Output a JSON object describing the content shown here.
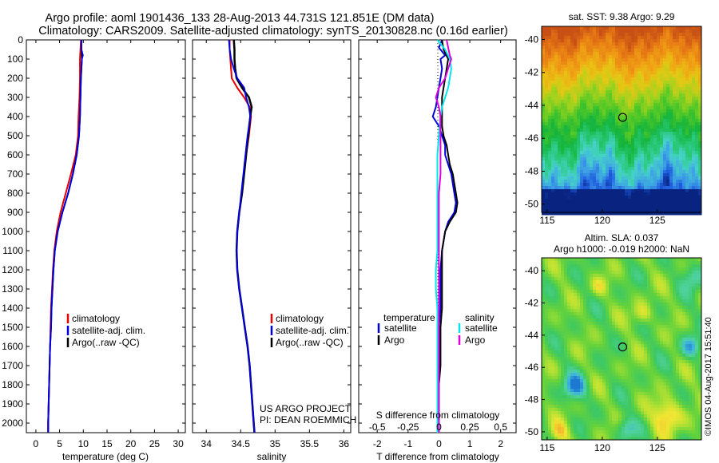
{
  "figure": {
    "title_line1": "Argo profile: aoml 1901436_133 28-Aug-2013 44.731S 121.851E (DM data)",
    "title_line2": "Climatology: CARS2009. Satellite-adjusted climatology: synTS_20130828.nc (0.16d earlier)",
    "credit": "US ARGO PROJECT",
    "pi": "PI: DEAN ROEMMICH",
    "watermark": "©IMOS 04-Aug-2017 15:51:40"
  },
  "colors": {
    "climatology": "#e60000",
    "satellite": "#0000dd",
    "argo": "#000000",
    "salinity_satellite": "#00e5ee",
    "salinity_argo": "#dd00dd"
  },
  "chart_data": [
    {
      "id": "temperature",
      "type": "line",
      "xlabel": "temperature (deg C)",
      "ylabel": "",
      "xlim": [
        -2,
        31.5
      ],
      "ylim": [
        2050,
        0
      ],
      "xticks": [
        0,
        5,
        10,
        15,
        20,
        25,
        30
      ],
      "yticks": [
        0,
        100,
        200,
        300,
        400,
        500,
        600,
        700,
        800,
        900,
        1000,
        1100,
        1200,
        1300,
        1400,
        1500,
        1600,
        1700,
        1800,
        1900,
        2000
      ],
      "legend": [
        "climatology",
        "satellite-adj. clim.",
        "Argo(..raw -QC)"
      ],
      "series": [
        {
          "name": "climatology",
          "color_key": "climatology",
          "width": 2,
          "depth": [
            0,
            50,
            100,
            150,
            200,
            300,
            400,
            500,
            600,
            700,
            800,
            900,
            1000,
            1100,
            1200,
            1300,
            1400,
            1500,
            1600,
            1700,
            1800,
            1900,
            2000,
            2050
          ],
          "values": [
            9.5,
            9.4,
            9.3,
            9.3,
            9.3,
            9.2,
            9.0,
            8.9,
            8.4,
            7.4,
            6.3,
            5.2,
            4.4,
            3.9,
            3.6,
            3.4,
            3.2,
            3.1,
            3.0,
            2.9,
            2.8,
            2.7,
            2.6,
            2.6
          ]
        },
        {
          "name": "Argo",
          "color_key": "argo",
          "width": 2,
          "depth": [
            0,
            50,
            100,
            150,
            200,
            300,
            400,
            500,
            600,
            700,
            800,
            900,
            1000,
            1100,
            1200,
            1300,
            1400,
            1500,
            1600,
            1700,
            1800,
            1900,
            2000,
            2050
          ],
          "values": [
            9.6,
            9.6,
            9.7,
            9.6,
            9.5,
            9.4,
            9.3,
            9.1,
            8.6,
            7.8,
            6.8,
            5.6,
            4.6,
            4.0,
            3.7,
            3.5,
            3.3,
            3.2,
            3.0,
            2.9,
            2.8,
            2.7,
            2.6,
            2.6
          ]
        },
        {
          "name": "satellite",
          "color_key": "satellite",
          "width": 2,
          "depth": [
            0,
            50,
            80,
            100,
            150,
            200,
            300,
            400,
            500,
            600,
            700,
            800,
            900,
            1000,
            1100,
            1200,
            1300,
            1400,
            1500,
            1600,
            1700,
            1800,
            1900,
            2000,
            2050
          ],
          "values": [
            9.6,
            9.6,
            9.9,
            9.7,
            9.6,
            9.5,
            9.4,
            9.3,
            9.1,
            8.6,
            7.8,
            6.8,
            5.6,
            4.6,
            4.0,
            3.7,
            3.5,
            3.3,
            3.2,
            3.0,
            2.9,
            2.8,
            2.7,
            2.6,
            2.6
          ]
        }
      ]
    },
    {
      "id": "salinity",
      "type": "line",
      "xlabel": "salinity",
      "ylabel": "",
      "xlim": [
        33.8,
        36.1
      ],
      "ylim": [
        2050,
        0
      ],
      "xticks": [
        34,
        34.5,
        35,
        35.5,
        36
      ],
      "legend": [
        "climatology",
        "satellite-adj. clim.",
        "Argo(..raw -QC)"
      ],
      "series": [
        {
          "name": "climatology",
          "color_key": "climatology",
          "width": 2,
          "depth": [
            0,
            50,
            100,
            150,
            200,
            250,
            300,
            350,
            400,
            500,
            600,
            700,
            800,
            900,
            1000,
            1100,
            1200,
            1300,
            1400,
            1500,
            1600,
            1700,
            1800,
            1900,
            2000,
            2050
          ],
          "values": [
            34.34,
            34.34,
            34.35,
            34.36,
            34.37,
            34.45,
            34.55,
            34.63,
            34.65,
            34.62,
            34.58,
            34.55,
            34.52,
            34.48,
            34.45,
            34.44,
            34.45,
            34.48,
            34.52,
            34.56,
            34.6,
            34.63,
            34.65,
            34.67,
            34.69,
            34.7
          ]
        },
        {
          "name": "Argo",
          "color_key": "argo",
          "width": 2.5,
          "depth": [
            0,
            50,
            100,
            150,
            200,
            250,
            300,
            350,
            400,
            500,
            600,
            700,
            800,
            900,
            1000,
            1100,
            1200,
            1300,
            1400,
            1500,
            1600,
            1700,
            1800,
            1900,
            2000,
            2050
          ],
          "values": [
            34.4,
            34.41,
            34.41,
            34.42,
            34.44,
            34.52,
            34.62,
            34.66,
            34.64,
            34.61,
            34.58,
            34.55,
            34.52,
            34.48,
            34.45,
            34.44,
            34.45,
            34.48,
            34.52,
            34.56,
            34.6,
            34.63,
            34.65,
            34.67,
            34.69,
            34.7
          ]
        },
        {
          "name": "satellite",
          "color_key": "satellite",
          "width": 2,
          "depth": [
            0,
            50,
            100,
            150,
            200,
            250,
            300,
            350,
            400,
            500,
            600,
            700,
            800,
            900,
            1000,
            1100,
            1200,
            1300,
            1400,
            1500,
            1600,
            1700,
            1800,
            1900,
            2000,
            2050
          ],
          "values": [
            34.33,
            34.34,
            34.36,
            34.4,
            34.45,
            34.55,
            34.58,
            34.62,
            34.64,
            34.6,
            34.57,
            34.54,
            34.51,
            34.48,
            34.45,
            34.44,
            34.45,
            34.48,
            34.52,
            34.56,
            34.6,
            34.63,
            34.65,
            34.67,
            34.69,
            34.7
          ]
        }
      ]
    },
    {
      "id": "differences",
      "type": "line",
      "xlabel": "T difference from climatology",
      "xlabel_top": "S difference from climatology",
      "ylabel": "",
      "xlim": [
        -2.6,
        2.5
      ],
      "ylim": [
        2050,
        0
      ],
      "xticks": [
        -2,
        -1,
        0,
        1,
        2
      ],
      "xticks_secondary_labels": [
        "-0.5",
        "-0.25",
        "0",
        "0.25",
        "0.5"
      ],
      "xticks_secondary_positions": [
        -2,
        -1,
        0,
        1,
        2
      ],
      "legend_temperature_header": "temperature",
      "legend_salinity_header": "salinity",
      "legend_temperature": [
        "satellite",
        "Argo"
      ],
      "legend_salinity": [
        "satellite",
        "Argo"
      ],
      "series": [
        {
          "name": "T satellite",
          "color_key": "satellite",
          "width": 2,
          "depth": [
            0,
            40,
            80,
            100,
            150,
            200,
            250,
            300,
            350,
            400,
            450,
            500,
            550,
            600,
            650,
            700,
            750,
            800,
            850,
            900,
            950,
            1000,
            1100,
            1200,
            1300,
            1400,
            1500,
            1600,
            1700,
            1800,
            1900,
            2000,
            2050
          ],
          "values": [
            0.1,
            0.0,
            0.2,
            0.05,
            0.1,
            0.05,
            0.0,
            -0.05,
            -0.1,
            -0.2,
            0.0,
            0.1,
            0.2,
            0.2,
            0.3,
            0.4,
            0.45,
            0.5,
            0.55,
            0.5,
            0.3,
            0.2,
            0.1,
            0.05,
            0.05,
            0.05,
            0.0,
            0.0,
            0.0,
            0.0,
            0.0,
            0.0,
            0.0
          ]
        },
        {
          "name": "T Argo",
          "color_key": "argo",
          "width": 2,
          "depth": [
            0,
            50,
            100,
            150,
            200,
            250,
            300,
            350,
            400,
            450,
            500,
            550,
            600,
            650,
            700,
            750,
            800,
            850,
            900,
            950,
            1000,
            1100,
            1200,
            1300,
            1400,
            1500,
            1600,
            1700,
            1800,
            1900,
            2000,
            2050
          ],
          "values": [
            0.1,
            0.15,
            0.3,
            0.25,
            0.2,
            0.15,
            0.1,
            0.1,
            0.1,
            0.1,
            0.15,
            0.25,
            0.3,
            0.35,
            0.45,
            0.5,
            0.55,
            0.6,
            0.55,
            0.35,
            0.2,
            0.1,
            0.1,
            0.1,
            0.1,
            0.05,
            0.05,
            0.05,
            0.0,
            0.0,
            0.0,
            0.0
          ]
        },
        {
          "name": "S satellite",
          "color_key": "salinity_satellite",
          "width": 2,
          "depth": [
            0,
            50,
            100,
            150,
            200,
            250,
            300,
            350,
            400,
            500,
            600,
            700,
            800,
            900,
            1000,
            1100,
            1200,
            1300,
            1400,
            1500,
            1600,
            1700,
            1800,
            1900,
            2000,
            2050
          ],
          "values": [
            -0.05,
            0.2,
            0.35,
            0.4,
            0.35,
            0.3,
            0.2,
            0.1,
            0.05,
            0.0,
            -0.05,
            -0.05,
            -0.05,
            -0.05,
            -0.05,
            -0.05,
            -0.1,
            -0.1,
            -0.05,
            -0.05,
            -0.05,
            -0.05,
            -0.05,
            -0.05,
            -0.05,
            -0.05
          ]
        },
        {
          "name": "S Argo",
          "color_key": "salinity_argo",
          "width": 2,
          "depth": [
            0,
            40,
            80,
            100,
            150,
            200,
            250,
            300,
            350,
            400,
            500,
            600,
            700,
            800,
            900,
            1000,
            1100,
            1200,
            1300,
            1400,
            1500,
            1600,
            1700,
            1800,
            1900,
            2000,
            2050
          ],
          "values": [
            0.25,
            0.3,
            0.35,
            0.4,
            0.3,
            0.2,
            0.0,
            -0.1,
            0.0,
            0.05,
            0.05,
            0.05,
            0.05,
            0.0,
            0.0,
            0.0,
            0.0,
            0.0,
            0.0,
            0.0,
            0.0,
            0.0,
            0.0,
            0.0,
            0.0,
            0.0,
            0.0
          ]
        }
      ]
    },
    {
      "id": "sst_map",
      "type": "heatmap",
      "title": "sat. SST: 9.38 Argo: 9.29",
      "xlim": [
        114.5,
        129
      ],
      "ylim": [
        -50.5,
        -39.2
      ],
      "xticks": [
        115,
        120,
        125
      ],
      "yticks": [
        -40,
        -42,
        -44,
        -46,
        -48,
        -50
      ],
      "marker": [
        121.851,
        -44.731
      ],
      "colormap": [
        "#082480",
        "#1e5adc",
        "#3ca0e6",
        "#46d2c8",
        "#28c878",
        "#14b43c",
        "#50c828",
        "#a0d21e",
        "#e6c814",
        "#f0a014",
        "#e67814",
        "#c85014"
      ]
    },
    {
      "id": "sla_map",
      "type": "heatmap",
      "title": "Altim. SLA: 0.037",
      "subtitle": "Argo h1000: -0.019 h2000: NaN",
      "xlim": [
        114.5,
        129
      ],
      "ylim": [
        -50.5,
        -39.2
      ],
      "xticks": [
        115,
        120,
        125
      ],
      "yticks": [
        -40,
        -42,
        -44,
        -46,
        -48,
        -50
      ],
      "marker": [
        121.851,
        -44.731
      ],
      "colormap": [
        "#1e78d2",
        "#3cb4dc",
        "#50d2a0",
        "#3cc864",
        "#64d23c",
        "#b4e132",
        "#f0e632",
        "#f5b42d",
        "#e68228"
      ]
    }
  ]
}
